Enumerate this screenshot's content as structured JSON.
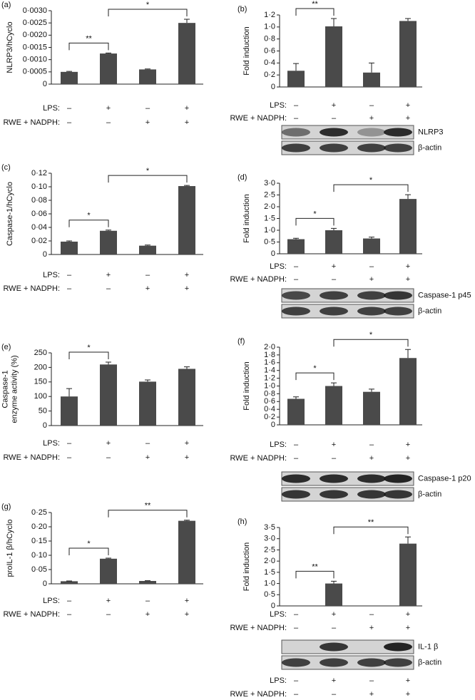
{
  "chart_data": [
    {
      "type": "bar",
      "label": "(a)",
      "ylabel": "NLRP3/hCyclo",
      "color": "#4a4a4a",
      "ylim": [
        0,
        0.003
      ],
      "yticks": [
        0,
        {
          "value": 0.0005,
          "label": "0·0005"
        },
        {
          "value": 0.001,
          "label": "0·0010"
        },
        {
          "value": 0.0015,
          "label": "0·0015"
        },
        {
          "value": 0.002,
          "label": "0·0020"
        },
        {
          "value": 0.0025,
          "label": "0·0025"
        },
        {
          "value": 0.003,
          "label": "0·0030"
        }
      ],
      "values": [
        0.0005,
        0.00125,
        0.0006,
        0.0025
      ],
      "errors": [
        2e-05,
        2e-05,
        2e-05,
        0.00015
      ],
      "significance": [
        {
          "text": "**",
          "from": 0,
          "to": 1
        },
        {
          "text": "*",
          "from": 1,
          "to": 3
        }
      ],
      "conditions": [
        {
          "name": "LPS:",
          "values": [
            "–",
            "+",
            "–",
            "+"
          ]
        },
        {
          "name": "RWE + NADPH:",
          "values": [
            "–",
            "–",
            "+",
            "+"
          ]
        }
      ]
    },
    {
      "type": "bar",
      "label": "(b)",
      "ylabel": "Fold induction",
      "color": "#4a4a4a",
      "ylim": [
        0,
        1.2
      ],
      "yticks": [
        0,
        {
          "value": 0.2,
          "label": "0·2"
        },
        {
          "value": 0.4,
          "label": "0·4"
        },
        {
          "value": 0.6,
          "label": "0·6"
        },
        {
          "value": 0.8,
          "label": "0·8"
        },
        {
          "value": 1,
          "label": "1·0"
        },
        {
          "value": 1.2,
          "label": "1·2"
        }
      ],
      "values": [
        0.27,
        1.01,
        0.24,
        1.1
      ],
      "errors": [
        0.12,
        0.13,
        0.16,
        0.04
      ],
      "significance": [
        {
          "text": "**",
          "from": 0,
          "to": 1
        }
      ],
      "conditions": [
        {
          "name": "LPS:",
          "values": [
            "–",
            "+",
            "–",
            "+"
          ]
        },
        {
          "name": "RWE + NADPH:",
          "values": [
            "–",
            "–",
            "+",
            "+"
          ]
        }
      ],
      "blot": [
        "NLRP3",
        "β-actin"
      ]
    },
    {
      "type": "bar",
      "label": "(c)",
      "ylabel": "Caspase-1/hCyclo",
      "color": "#4a4a4a",
      "ylim": [
        0,
        0.12
      ],
      "yticks": [
        0,
        {
          "value": 0.02,
          "label": "0·02"
        },
        {
          "value": 0.04,
          "label": "0·04"
        },
        {
          "value": 0.06,
          "label": "0·06"
        },
        {
          "value": 0.08,
          "label": "0·08"
        },
        {
          "value": 0.1,
          "label": "0·10"
        },
        {
          "value": 0.12,
          "label": "0·12"
        }
      ],
      "values": [
        0.019,
        0.035,
        0.013,
        0.101
      ],
      "errors": [
        0.001,
        0.001,
        0.001,
        0.001
      ],
      "significance": [
        {
          "text": "*",
          "from": 0,
          "to": 1
        },
        {
          "text": "*",
          "from": 1,
          "to": 3
        }
      ],
      "conditions": [
        {
          "name": "LPS:",
          "values": [
            "–",
            "+",
            "–",
            "+"
          ]
        },
        {
          "name": "RWE + NADPH:",
          "values": [
            "–",
            "–",
            "+",
            "+"
          ]
        }
      ]
    },
    {
      "type": "bar",
      "label": "(d)",
      "ylabel": "Fold induction",
      "color": "#4a4a4a",
      "ylim": [
        0,
        3
      ],
      "yticks": [
        0,
        {
          "value": 0.5,
          "label": "0·5"
        },
        {
          "value": 1,
          "label": "1·0"
        },
        {
          "value": 1.5,
          "label": "1·5"
        },
        {
          "value": 2,
          "label": "2·0"
        },
        {
          "value": 2.5,
          "label": "2·5"
        },
        {
          "value": 3,
          "label": "3·0"
        }
      ],
      "values": [
        0.62,
        1.0,
        0.65,
        2.33
      ],
      "errors": [
        0.04,
        0.08,
        0.06,
        0.18
      ],
      "significance": [
        {
          "text": "*",
          "from": 0,
          "to": 1
        },
        {
          "text": "*",
          "from": 1,
          "to": 3
        }
      ],
      "conditions": [
        {
          "name": "LPS:",
          "values": [
            "–",
            "+",
            "–",
            "+"
          ]
        },
        {
          "name": "RWE + NADPH:",
          "values": [
            "–",
            "–",
            "+",
            "+"
          ]
        }
      ],
      "blot": [
        "Caspase-1 p45",
        "β-actin"
      ]
    },
    {
      "type": "bar",
      "label": "(e)",
      "ylabel": [
        "Caspase-1",
        "enzyme activity (%)"
      ],
      "color": "#4a4a4a",
      "ylim": [
        0,
        250
      ],
      "yticks": [
        0,
        50,
        100,
        150,
        200,
        250
      ],
      "values": [
        100,
        210,
        151,
        195
      ],
      "errors": [
        27,
        8,
        6,
        7
      ],
      "significance": [
        {
          "text": "*",
          "from": 0,
          "to": 1
        }
      ],
      "conditions": [
        {
          "name": "LPS:",
          "values": [
            "–",
            "+",
            "–",
            "+"
          ]
        },
        {
          "name": "RWE + NADPH:",
          "values": [
            "–",
            "–",
            "+",
            "+"
          ]
        }
      ]
    },
    {
      "type": "bar",
      "label": "(f)",
      "ylabel": "Fold induction",
      "color": "#4a4a4a",
      "ylim": [
        0,
        2
      ],
      "yticks": [
        0,
        {
          "value": 0.2,
          "label": "0·2"
        },
        {
          "value": 0.4,
          "label": "0·4"
        },
        {
          "value": 0.6,
          "label": "0·6"
        },
        {
          "value": 0.8,
          "label": "0·8"
        },
        {
          "value": 1,
          "label": "1·0"
        },
        {
          "value": 1.2,
          "label": "1·2"
        },
        {
          "value": 1.4,
          "label": "1·4"
        },
        {
          "value": 1.6,
          "label": "1·6"
        },
        {
          "value": 1.8,
          "label": "1·8"
        },
        {
          "value": 2,
          "label": "2·0"
        }
      ],
      "values": [
        0.67,
        1.0,
        0.85,
        1.72
      ],
      "errors": [
        0.05,
        0.08,
        0.07,
        0.22
      ],
      "significance": [
        {
          "text": "*",
          "from": 0,
          "to": 1
        },
        {
          "text": "*",
          "from": 1,
          "to": 3
        }
      ],
      "conditions": [
        {
          "name": "LPS:",
          "values": [
            "–",
            "+",
            "–",
            "+"
          ]
        },
        {
          "name": "RWE + NADPH:",
          "values": [
            "–",
            "–",
            "+",
            "+"
          ]
        }
      ],
      "blot": [
        "Caspase-1 p20",
        "β-actin"
      ]
    },
    {
      "type": "bar",
      "label": "(g)",
      "ylabel": "proIL-1 β/hCyclo",
      "color": "#4a4a4a",
      "ylim": [
        0,
        0.25
      ],
      "yticks": [
        0,
        {
          "value": 0.05,
          "label": "0·05"
        },
        {
          "value": 0.1,
          "label": "0·10"
        },
        {
          "value": 0.15,
          "label": "0·15"
        },
        {
          "value": 0.2,
          "label": "0·20"
        },
        {
          "value": 0.25,
          "label": "0·25"
        }
      ],
      "values": [
        0.009,
        0.088,
        0.01,
        0.221
      ],
      "errors": [
        0.001,
        0.002,
        0.001,
        0.002
      ],
      "significance": [
        {
          "text": "*",
          "from": 0,
          "to": 1
        },
        {
          "text": "**",
          "from": 1,
          "to": 3
        }
      ],
      "conditions": [
        {
          "name": "LPS:",
          "values": [
            "–",
            "+",
            "–",
            "+"
          ]
        },
        {
          "name": "RWE + NADPH:",
          "values": [
            "–",
            "–",
            "+",
            "+"
          ]
        }
      ]
    },
    {
      "type": "bar",
      "label": "(h)",
      "ylabel": "Fold induction",
      "color": "#4a4a4a",
      "ylim": [
        0,
        3.5
      ],
      "yticks": [
        0,
        {
          "value": 0.5,
          "label": "0·5"
        },
        {
          "value": 1,
          "label": "1·0"
        },
        {
          "value": 1.5,
          "label": "1·5"
        },
        {
          "value": 2,
          "label": "2·0"
        },
        {
          "value": 2.5,
          "label": "2·5"
        },
        {
          "value": 3,
          "label": "3·0"
        },
        {
          "value": 3.5,
          "label": "3·5"
        }
      ],
      "values": [
        0,
        1.0,
        0,
        2.78
      ],
      "errors": [
        null,
        0.1,
        null,
        0.3
      ],
      "significance": [
        {
          "text": "**",
          "from": 0,
          "to": 1
        },
        {
          "text": "**",
          "from": 1,
          "to": 3
        }
      ],
      "conditions": [
        {
          "name": "LPS:",
          "values": [
            "–",
            "+",
            "–",
            "+"
          ]
        },
        {
          "name": "RWE + NADPH:",
          "values": [
            "–",
            "–",
            "+",
            "+"
          ]
        }
      ],
      "blot": [
        "IL-1 β",
        "β-actin"
      ],
      "blot_conditions": [
        {
          "name": "LPS:",
          "values": [
            "–",
            "+",
            "–",
            "+"
          ]
        },
        {
          "name": "RWE + NADPH:",
          "values": [
            "–",
            "–",
            "+",
            "+"
          ]
        }
      ]
    }
  ]
}
